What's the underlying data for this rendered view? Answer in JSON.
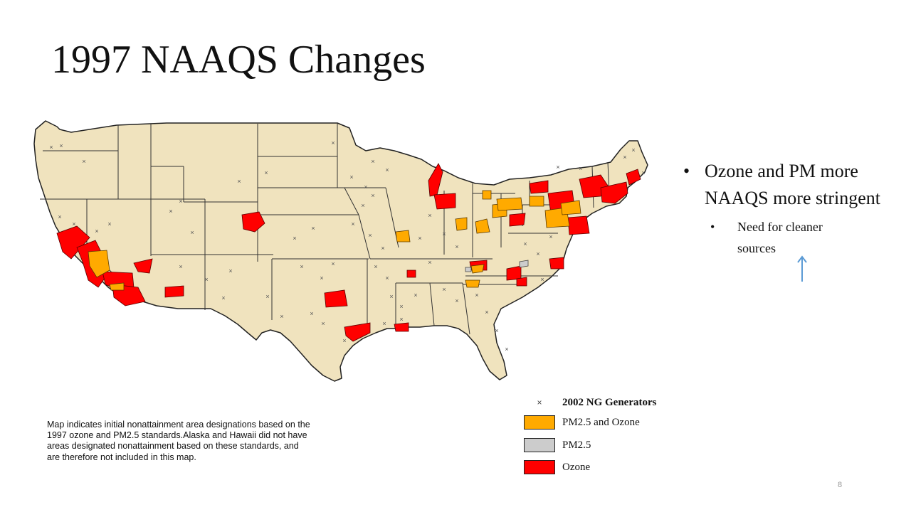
{
  "slide": {
    "title": "1997 NAAQS Changes",
    "page_number": "8"
  },
  "bullets": {
    "main": "Ozone and PM more NAAQS more stringent",
    "sub": "Need for cleaner sources",
    "arrow_icon": "up-arrow-icon",
    "arrow_color": "#5B9BD5"
  },
  "map": {
    "caption_lines": [
      "Map indicates initial nonattainment area designations based on the",
      " 1997 ozone and PM2.5 standards.Alaska and Hawaii did not have",
      "areas designated nonattainment based on these standards, and",
      "are therefore not included in this map."
    ],
    "legend": [
      {
        "type": "marker",
        "symbol": "×",
        "label": "2002 NG Generators"
      },
      {
        "type": "swatch",
        "color": "#FFAA00",
        "label": "PM2.5 and Ozone"
      },
      {
        "type": "swatch",
        "color": "#CCCCCC",
        "label": "PM2.5"
      },
      {
        "type": "swatch",
        "color": "#FF0000",
        "label": "Ozone"
      }
    ],
    "colors": {
      "land": "#F0E3BE",
      "state_border": "#222222",
      "ozone": "#FF0000",
      "pm25_and_ozone": "#FFAA00",
      "pm25": "#CCCCCC",
      "generator_marker": "#555555"
    }
  }
}
